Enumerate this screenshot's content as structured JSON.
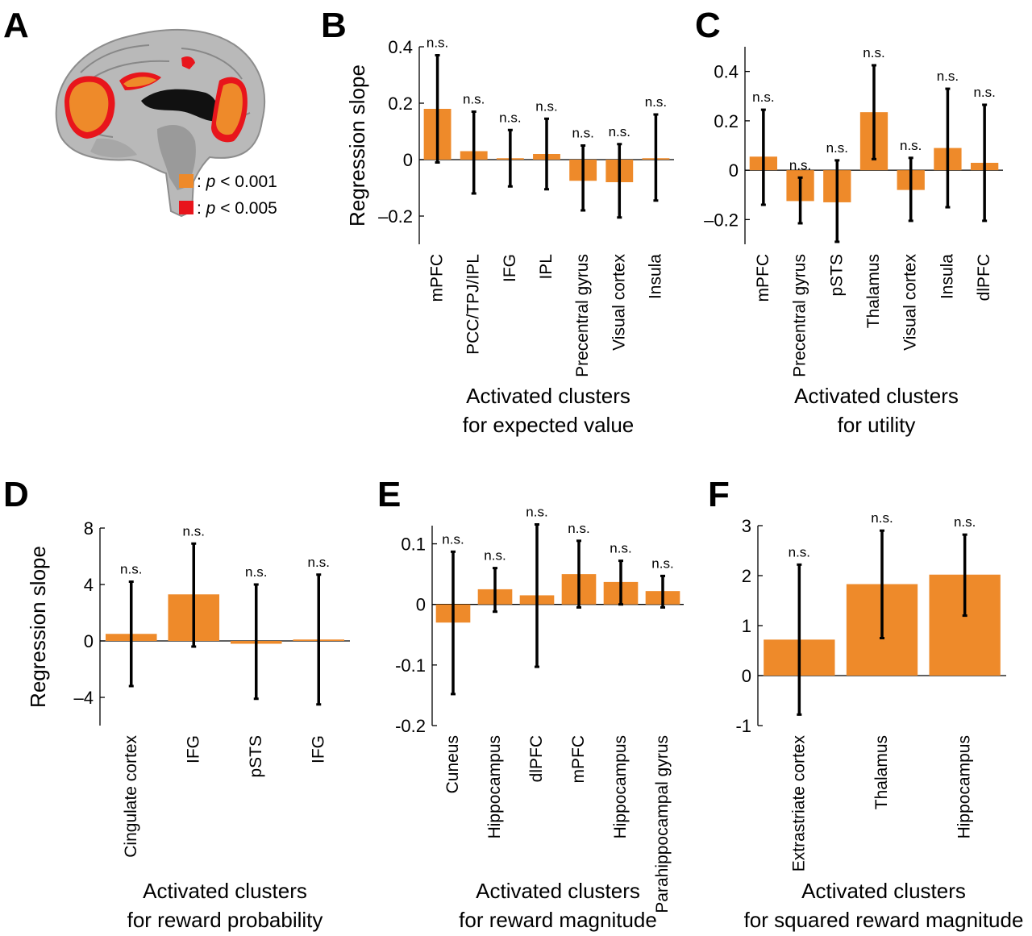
{
  "figure_panels": {
    "A": {
      "label": "A",
      "legend": [
        {
          "color": "#ee8a2a",
          "prefix": ": ",
          "p": "p",
          "text": " < 0.001"
        },
        {
          "color": "#e8151c",
          "prefix": ": ",
          "p": "p",
          "text": " < 0.005"
        }
      ]
    }
  },
  "colors": {
    "bar": "#ee8a2a",
    "threshold_red": "#e8151c"
  },
  "chart_data": [
    {
      "panel": "B",
      "type": "bar",
      "ylabel": "Regression slope",
      "xtitle": [
        "Activated clusters",
        "for expected value"
      ],
      "ylim": [
        -0.3,
        0.4
      ],
      "yticks": [
        -0.2,
        0,
        0.2,
        0.4
      ],
      "ytick_labels": [
        "–0.2",
        "0",
        "0.2",
        "0.4"
      ],
      "categories": [
        "mPFC",
        "PCC/TPJ/IPL",
        "IFG",
        "IPL",
        "Precentral gyrus",
        "Visual cortex",
        "Insula"
      ],
      "values": [
        0.18,
        0.03,
        0.005,
        0.02,
        -0.075,
        -0.08,
        0.005
      ],
      "err_low": [
        -0.01,
        -0.12,
        -0.095,
        -0.105,
        -0.18,
        -0.205,
        -0.145
      ],
      "err_high": [
        0.37,
        0.17,
        0.105,
        0.145,
        0.05,
        0.055,
        0.16
      ],
      "annotations": [
        "n.s.",
        "n.s.",
        "n.s.",
        "n.s.",
        "n.s.",
        "n.s.",
        "n.s."
      ]
    },
    {
      "panel": "C",
      "type": "bar",
      "ylabel": "",
      "xtitle": [
        "Activated clusters",
        "for utility"
      ],
      "ylim": [
        -0.3,
        0.5
      ],
      "yticks": [
        -0.2,
        0,
        0.2,
        0.4
      ],
      "ytick_labels": [
        "–0.2",
        "0",
        "0.2",
        "0.4"
      ],
      "categories": [
        "mPFC",
        "Precentral gyrus",
        "pSTS",
        "Thalamus",
        "Visual cortex",
        "Insula",
        "dlPFC"
      ],
      "values": [
        0.055,
        -0.125,
        -0.13,
        0.235,
        -0.08,
        0.09,
        0.03
      ],
      "err_low": [
        -0.14,
        -0.215,
        -0.29,
        0.045,
        -0.205,
        -0.15,
        -0.205
      ],
      "err_high": [
        0.245,
        -0.03,
        0.04,
        0.425,
        0.05,
        0.33,
        0.265
      ],
      "annotations": [
        "n.s.",
        "n.s.",
        "n.s.",
        "n.s.",
        "n.s.",
        "n.s.",
        "n.s."
      ]
    },
    {
      "panel": "D",
      "type": "bar",
      "ylabel": "Regression slope",
      "xtitle": [
        "Activated clusters",
        "for reward probability"
      ],
      "ylim": [
        -6,
        8
      ],
      "yticks": [
        -4,
        0,
        4,
        8
      ],
      "ytick_labels": [
        "–4",
        "0",
        "4",
        "8"
      ],
      "categories": [
        "Cingulate cortex",
        "IFG",
        "pSTS",
        "IFG"
      ],
      "values": [
        0.5,
        3.3,
        -0.2,
        0.1
      ],
      "err_low": [
        -3.2,
        -0.4,
        -4.1,
        -4.5
      ],
      "err_high": [
        4.2,
        6.9,
        4.0,
        4.7
      ],
      "annotations": [
        "n.s.",
        "n.s.",
        "n.s.",
        "n.s."
      ]
    },
    {
      "panel": "E",
      "type": "bar",
      "ylabel": "",
      "xtitle": [
        "Activated clusters",
        "for reward magnitude"
      ],
      "ylim": [
        -0.2,
        0.13
      ],
      "yticks": [
        -0.2,
        -0.1,
        0,
        0.1
      ],
      "ytick_labels": [
        "-0.2",
        "-0.1",
        "0",
        "0.1"
      ],
      "categories": [
        "Cuneus",
        "Hippocampus",
        "dlPFC",
        "mPFC",
        "Hippocampus",
        "Parahippocampal gyrus"
      ],
      "values": [
        -0.03,
        0.025,
        0.015,
        0.05,
        0.037,
        0.022
      ],
      "err_low": [
        -0.148,
        -0.012,
        -0.103,
        -0.005,
        0.0,
        -0.005
      ],
      "err_high": [
        0.087,
        0.06,
        0.132,
        0.105,
        0.072,
        0.047
      ],
      "annotations": [
        "n.s.",
        "n.s.",
        "n.s.",
        "n.s.",
        "n.s.",
        "n.s."
      ]
    },
    {
      "panel": "F",
      "type": "bar",
      "ylabel": "",
      "xtitle": [
        "Activated clusters",
        "for squared reward magnitude"
      ],
      "ylim": [
        -1,
        3
      ],
      "yticks": [
        -1,
        0,
        1,
        2,
        3
      ],
      "ytick_labels": [
        "-1",
        "0",
        "1",
        "2",
        "3"
      ],
      "categories": [
        "Extrastriate cortex",
        "Thalamus",
        "Hippocampus"
      ],
      "values": [
        0.72,
        1.83,
        2.02
      ],
      "err_low": [
        -0.78,
        0.75,
        1.2
      ],
      "err_high": [
        2.22,
        2.9,
        2.82
      ],
      "annotations": [
        "n.s.",
        "n.s.",
        "n.s."
      ]
    }
  ]
}
